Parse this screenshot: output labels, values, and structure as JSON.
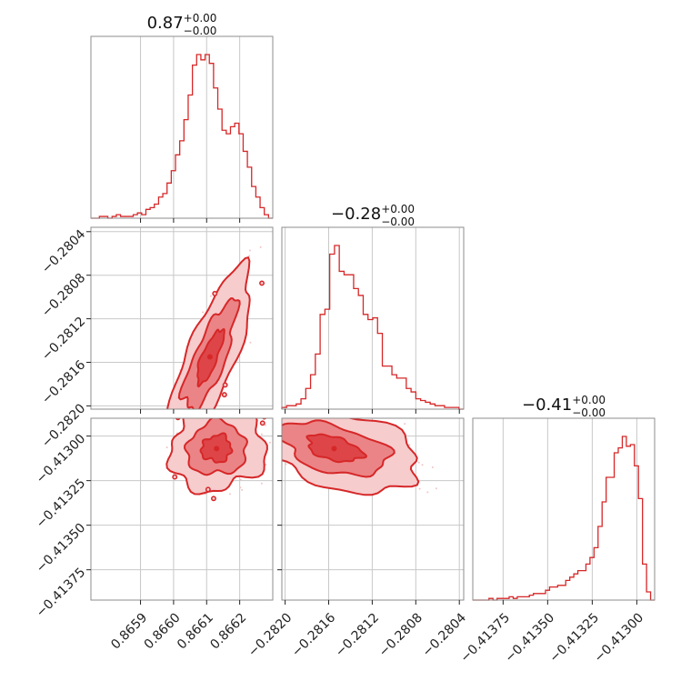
{
  "colors": {
    "accent": "#d62728",
    "fill_outer": "#f6cccd",
    "fill_mid": "#eb8486",
    "fill_inner": "#de4548",
    "scatter": "#f3c4c5",
    "grid": "#c8c8c8",
    "frame": "#8c8c8c"
  },
  "chart_data": {
    "type": "corner",
    "grid": true,
    "parameters": [
      {
        "title_main": "0.87",
        "title_upper": "+0.00",
        "title_lower": "−0.00",
        "range": [
          0.86575,
          0.8663
        ],
        "ticks": [
          0.8659,
          0.866,
          0.8661,
          0.8662
        ],
        "tick_labels": [
          "0.8659",
          "0.8660",
          "0.8661",
          "0.8662"
        ]
      },
      {
        "title_main": "−0.28",
        "title_upper": "+0.00",
        "title_lower": "−0.00",
        "range": [
          -0.28203,
          -0.28036
        ],
        "ticks": [
          -0.282,
          -0.2816,
          -0.2812,
          -0.2808,
          -0.2804
        ],
        "tick_labels": [
          "−0.2820",
          "−0.2816",
          "−0.2812",
          "−0.2808",
          "−0.2804"
        ]
      },
      {
        "title_main": "−0.41",
        "title_upper": "+0.00",
        "title_lower": "−0.00",
        "range": [
          -0.41392,
          -0.4129
        ],
        "ticks": [
          -0.41375,
          -0.4135,
          -0.41325,
          -0.413
        ],
        "tick_labels": [
          "−0.41375",
          "−0.41350",
          "−0.41325",
          "−0.41300"
        ]
      }
    ],
    "histograms": [
      {
        "param": 0,
        "bin_start": 0.86575,
        "bin_end": 0.8663,
        "counts": [
          0,
          0,
          1,
          1,
          0,
          1,
          2,
          1,
          1,
          1,
          2,
          3,
          2,
          5,
          6,
          8,
          12,
          14,
          20,
          27,
          36,
          44,
          56,
          70,
          87,
          93,
          90,
          93,
          88,
          74,
          62,
          50,
          48,
          52,
          54,
          48,
          38,
          29,
          18,
          12,
          6,
          2,
          0
        ]
      },
      {
        "param": 1,
        "bin_start": -0.28203,
        "bin_end": -0.28036,
        "counts": [
          1,
          2,
          2,
          3,
          6,
          12,
          20,
          32,
          55,
          58,
          90,
          95,
          80,
          78,
          78,
          70,
          66,
          55,
          52,
          53,
          44,
          25,
          25,
          20,
          18,
          18,
          12,
          10,
          6,
          5,
          4,
          3,
          2,
          2,
          1,
          1,
          1,
          0
        ]
      },
      {
        "param": 2,
        "bin_start": -0.41392,
        "bin_end": -0.4129,
        "counts": [
          0,
          0,
          0,
          0,
          1,
          0,
          1,
          1,
          1,
          2,
          1,
          2,
          2,
          2,
          3,
          4,
          4,
          4,
          6,
          8,
          8,
          9,
          9,
          12,
          14,
          16,
          18,
          18,
          22,
          26,
          32,
          45,
          60,
          75,
          75,
          90,
          93,
          100,
          94,
          95,
          82,
          62,
          22,
          5,
          0
        ]
      }
    ],
    "pairs": [
      {
        "x_param": 0,
        "y_param": 1,
        "center": [
          0.86611,
          -0.28155
        ],
        "sigma": [
          4e-05,
          0.00025
        ],
        "correlation": 0.78,
        "levels": [
          1.0,
          2.0,
          3.2
        ]
      },
      {
        "x_param": 0,
        "y_param": 2,
        "center": [
          0.86613,
          -0.41307
        ],
        "sigma": [
          4.5e-05,
          7.5e-05
        ],
        "correlation": 0.05,
        "levels": [
          1.0,
          2.0,
          3.2
        ]
      },
      {
        "x_param": 1,
        "y_param": 2,
        "center": [
          -0.28155,
          -0.41307
        ],
        "sigma": [
          0.00025,
          7.5e-05
        ],
        "correlation": -0.45,
        "levels": [
          1.0,
          2.0,
          3.2
        ]
      }
    ]
  }
}
